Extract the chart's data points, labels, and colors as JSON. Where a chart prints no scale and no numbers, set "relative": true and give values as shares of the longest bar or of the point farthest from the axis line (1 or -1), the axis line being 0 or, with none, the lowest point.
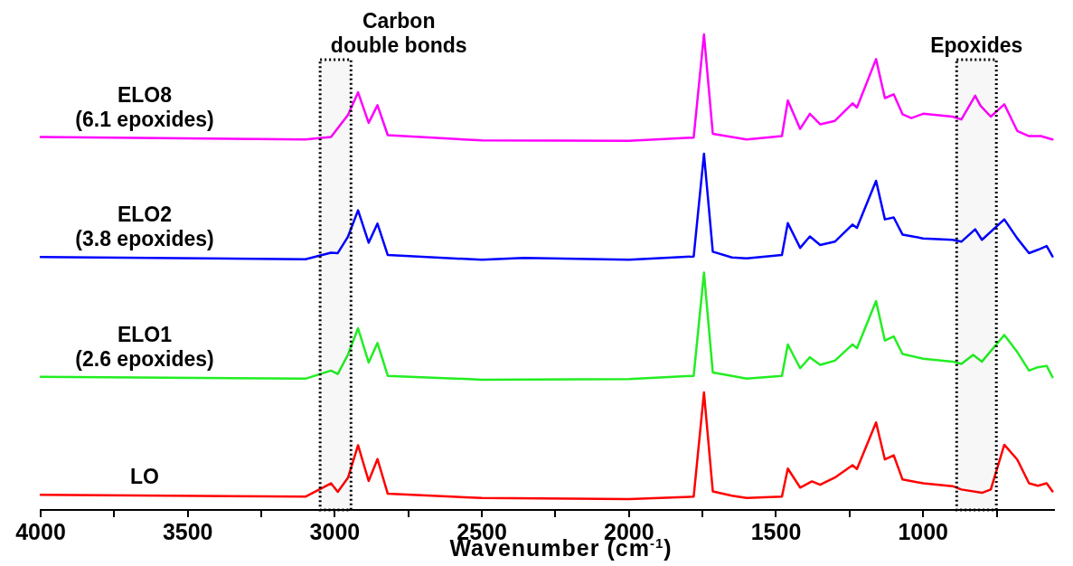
{
  "chart_data": {
    "type": "line",
    "relative": true,
    "xlabel": "Wavenumber (cm$^{-1}$)",
    "xlim": [
      4000,
      555
    ],
    "xticks": [
      4000,
      {
        "value": 3750,
        "label": null
      },
      3500,
      {
        "value": 3250,
        "label": null
      },
      3000,
      {
        "value": 2750,
        "label": null
      },
      2500,
      {
        "value": 2250,
        "label": null
      },
      2000,
      {
        "value": 1750,
        "label": null
      },
      1500,
      {
        "value": 1250,
        "label": null
      },
      1000,
      {
        "value": 750,
        "label": null
      }
    ],
    "tick_labels": "x",
    "grid": false,
    "legend": false,
    "marker": "none",
    "line_style": "solid",
    "bands": [
      {
        "axis": "x",
        "from": 3050,
        "to": 2945,
        "label": "Carbon\ndouble bonds"
      },
      {
        "axis": "x",
        "from": 886,
        "to": 751,
        "label": "Epoxides"
      }
    ],
    "series": [
      {
        "name": "ELO8\n(6.1 epoxides)",
        "color": "#ff00ff",
        "x": [
          4000,
          3100,
          3013,
          2955,
          2921,
          2885,
          2855,
          2820,
          2500,
          2000,
          1780,
          1745,
          1715,
          1600,
          1480,
          1460,
          1418,
          1385,
          1350,
          1300,
          1240,
          1225,
          1160,
          1130,
          1100,
          1070,
          1040,
          1000,
          900,
          870,
          823,
          805,
          770,
          724,
          680,
          640,
          600,
          560
        ],
        "values": [
          0.784,
          0.779,
          0.784,
          0.831,
          0.878,
          0.814,
          0.851,
          0.788,
          0.777,
          0.776,
          0.783,
          1.0,
          0.791,
          0.779,
          0.786,
          0.861,
          0.801,
          0.833,
          0.811,
          0.818,
          0.855,
          0.846,
          0.948,
          0.866,
          0.874,
          0.832,
          0.824,
          0.833,
          0.827,
          0.821,
          0.871,
          0.85,
          0.827,
          0.853,
          0.797,
          0.786,
          0.786,
          0.779
        ]
      },
      {
        "name": "ELO2\n(3.8 epoxides)",
        "color": "#0000ff",
        "x": [
          4000,
          3100,
          3013,
          2990,
          2955,
          2921,
          2885,
          2855,
          2820,
          2500,
          2357,
          2000,
          1780,
          1745,
          1715,
          1650,
          1600,
          1480,
          1460,
          1418,
          1385,
          1350,
          1300,
          1240,
          1225,
          1160,
          1130,
          1100,
          1070,
          1000,
          900,
          870,
          823,
          800,
          724,
          680,
          640,
          610,
          580,
          560
        ],
        "values": [
          0.532,
          0.527,
          0.541,
          0.54,
          0.575,
          0.63,
          0.562,
          0.602,
          0.536,
          0.526,
          0.53,
          0.526,
          0.533,
          0.749,
          0.543,
          0.531,
          0.529,
          0.536,
          0.603,
          0.551,
          0.575,
          0.557,
          0.564,
          0.6,
          0.593,
          0.692,
          0.611,
          0.615,
          0.579,
          0.571,
          0.568,
          0.564,
          0.59,
          0.568,
          0.611,
          0.571,
          0.54,
          0.547,
          0.555,
          0.533
        ]
      },
      {
        "name": "ELO1\n(2.6 epoxides)",
        "color": "#22ee22",
        "x": [
          4000,
          3100,
          3013,
          2990,
          2955,
          2921,
          2885,
          2855,
          2820,
          2500,
          2000,
          1780,
          1745,
          1715,
          1650,
          1600,
          1480,
          1460,
          1418,
          1385,
          1350,
          1300,
          1240,
          1225,
          1160,
          1130,
          1100,
          1070,
          1000,
          900,
          870,
          830,
          800,
          724,
          680,
          640,
          610,
          580,
          560
        ],
        "values": [
          0.28,
          0.276,
          0.293,
          0.286,
          0.327,
          0.382,
          0.31,
          0.351,
          0.282,
          0.274,
          0.275,
          0.282,
          0.499,
          0.289,
          0.282,
          0.276,
          0.282,
          0.348,
          0.298,
          0.321,
          0.305,
          0.314,
          0.348,
          0.34,
          0.439,
          0.356,
          0.365,
          0.328,
          0.318,
          0.312,
          0.307,
          0.326,
          0.312,
          0.368,
          0.332,
          0.293,
          0.3,
          0.303,
          0.279
        ]
      },
      {
        "name": "LO",
        "color": "#ff0000",
        "x": [
          4000,
          3100,
          3013,
          2990,
          2955,
          2921,
          2885,
          2855,
          2820,
          2500,
          2000,
          1780,
          1745,
          1715,
          1650,
          1600,
          1480,
          1460,
          1418,
          1378,
          1350,
          1300,
          1240,
          1225,
          1160,
          1130,
          1100,
          1070,
          1000,
          900,
          870,
          800,
          770,
          724,
          680,
          640,
          610,
          580,
          560
        ],
        "values": [
          0.032,
          0.028,
          0.056,
          0.038,
          0.068,
          0.136,
          0.061,
          0.107,
          0.034,
          0.025,
          0.023,
          0.028,
          0.247,
          0.039,
          0.03,
          0.025,
          0.028,
          0.087,
          0.047,
          0.06,
          0.053,
          0.068,
          0.094,
          0.086,
          0.184,
          0.106,
          0.115,
          0.064,
          0.056,
          0.05,
          0.043,
          0.036,
          0.043,
          0.137,
          0.106,
          0.056,
          0.051,
          0.056,
          0.039
        ]
      }
    ]
  }
}
